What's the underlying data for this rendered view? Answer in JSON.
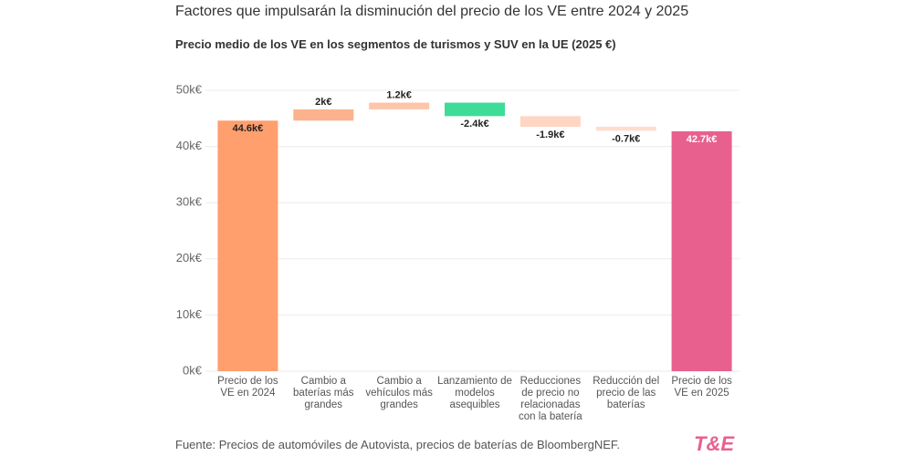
{
  "chart_data": {
    "type": "waterfall",
    "title": "Factores que impulsarán la disminución del precio de los VE entre 2024 y 2025",
    "subtitle": "Precio medio de los VE en los segmentos de turismos y SUV en la UE (2025 €)",
    "categories": [
      "Precio de los VE en 2024",
      "Cambio a baterías más grandes",
      "Cambio a vehículos más grandes",
      "Lanzamiento de modelos asequibles",
      "Reducciones de precio no relacionadas con la batería",
      "Reducción del precio de las baterías",
      "Precio de los VE en 2025"
    ],
    "values": [
      44.6,
      2,
      1.2,
      -2.4,
      -1.9,
      -0.7,
      42.7
    ],
    "value_labels": [
      "44.6k€",
      "2k€",
      "1.2k€",
      "-2.4k€",
      "-1.9k€",
      "-0.7k€",
      "42.7k€"
    ],
    "measure": [
      "absolute",
      "relative",
      "relative",
      "relative",
      "relative",
      "relative",
      "total"
    ],
    "colors": [
      "#ff9f6e",
      "#fbb28d",
      "#fdc6a9",
      "#3ddc97",
      "#ffd5c3",
      "#ffdccd",
      "#e8608e"
    ],
    "ylim": [
      0,
      50
    ],
    "yticks": [
      {
        "value": 0,
        "label": "0k€"
      },
      {
        "value": 10,
        "label": "10k€"
      },
      {
        "value": 20,
        "label": "20k€"
      },
      {
        "value": 30,
        "label": "30k€"
      },
      {
        "value": 40,
        "label": "40k€"
      },
      {
        "value": 50,
        "label": "50k€"
      }
    ],
    "grid": true,
    "source": "Fuente: Precios de automóviles de Autovista, precios de baterías de BloombergNEF.",
    "logo": "T&E"
  }
}
